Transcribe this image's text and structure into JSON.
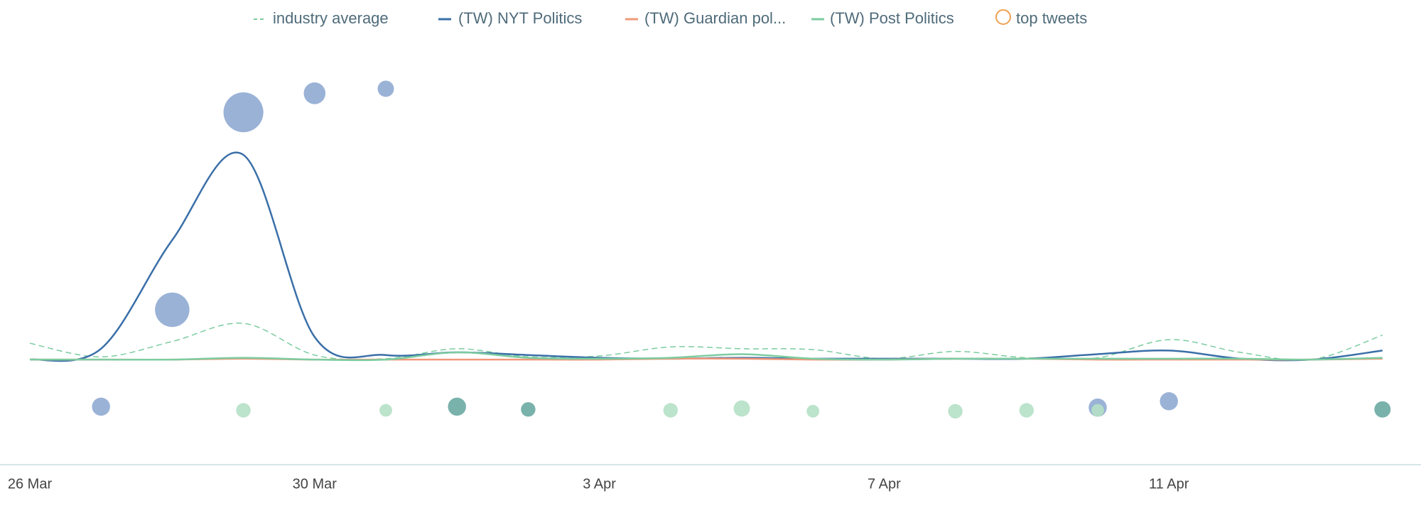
{
  "chart_data": {
    "type": "line",
    "categories": [
      "26 Mar",
      null,
      null,
      null,
      "30 Mar",
      null,
      null,
      null,
      "3 Apr",
      null,
      null,
      null,
      "7 Apr",
      null,
      null,
      null,
      "11 Apr",
      null,
      null,
      null
    ],
    "ylim": [
      -116,
      397
    ],
    "series": [
      {
        "name": "industry average",
        "color": "#7ccca0",
        "dashed": true,
        "values": [
          18,
          3,
          20,
          40,
          5,
          1,
          12,
          3,
          4,
          14,
          12,
          11,
          1,
          9,
          2,
          2,
          22,
          8,
          0,
          27
        ]
      },
      {
        "name": "(TW) NYT Politics",
        "color": "#3a6fa8",
        "values": [
          0,
          12,
          132,
          226,
          25,
          5,
          8,
          5,
          2,
          1,
          2,
          1,
          1,
          1,
          1,
          6,
          10,
          1,
          0,
          10
        ]
      },
      {
        "name": "(TW) Guardian pol...",
        "color": "#f0987a",
        "values": [
          0,
          0,
          0,
          1,
          0,
          0,
          0,
          0,
          0,
          1,
          1,
          0,
          0,
          1,
          1,
          0,
          0,
          0,
          0,
          1
        ]
      },
      {
        "name": "(TW) Post Politics",
        "color": "#7ccca0",
        "values": [
          0,
          0,
          0,
          2,
          0,
          0,
          8,
          2,
          1,
          2,
          6,
          1,
          0,
          1,
          1,
          1,
          1,
          1,
          0,
          2
        ]
      }
    ],
    "top_tweets": {
      "name": "top tweets",
      "color": "#f0a050",
      "groups": [
        {
          "color": "#8faad2",
          "values": [
            null,
            -52,
            55,
            273,
            294,
            299,
            null,
            null,
            null,
            null,
            null,
            null,
            null,
            null,
            null,
            -53,
            -46,
            null,
            null,
            null
          ],
          "sizes": [
            null,
            10,
            19,
            22,
            12,
            9,
            null,
            null,
            null,
            null,
            null,
            null,
            null,
            null,
            null,
            10,
            10,
            null,
            null,
            null
          ]
        },
        {
          "color": "#6aaaa2",
          "values": [
            null,
            null,
            null,
            null,
            null,
            null,
            -52,
            -55,
            null,
            null,
            null,
            null,
            null,
            null,
            null,
            null,
            null,
            null,
            null,
            -55
          ],
          "sizes": [
            null,
            null,
            null,
            null,
            null,
            null,
            10,
            8,
            null,
            null,
            null,
            null,
            null,
            null,
            null,
            null,
            null,
            null,
            null,
            9
          ]
        },
        {
          "color": "#b5e0c5",
          "values": [
            null,
            null,
            null,
            -56,
            null,
            -56,
            null,
            null,
            null,
            -56,
            -54,
            -57,
            null,
            -57,
            -56,
            -56,
            null,
            null,
            null,
            null
          ],
          "sizes": [
            null,
            null,
            null,
            8,
            null,
            7,
            null,
            null,
            null,
            8,
            9,
            7,
            null,
            8,
            8,
            7,
            null,
            null,
            null,
            null
          ]
        }
      ]
    }
  }
}
